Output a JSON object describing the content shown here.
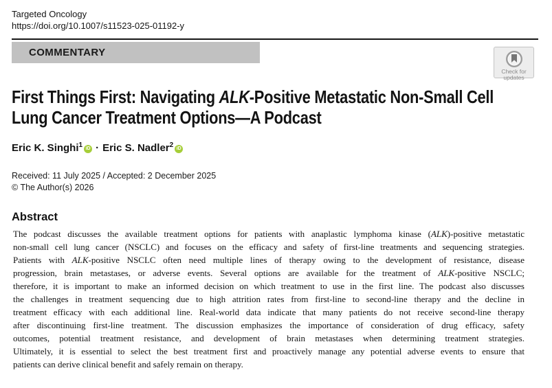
{
  "header": {
    "journal": "Targeted Oncology",
    "doi": "https://doi.org/10.1007/s11523-025-01192-y",
    "article_type": "COMMENTARY"
  },
  "crossmark": {
    "line1": "Check for",
    "line2": "updates",
    "icon": "crossmark-bookmark-icon"
  },
  "title": {
    "lines": [
      {
        "justify": false,
        "segs": [
          {
            "t": "First Things First: Navigating "
          },
          {
            "t": "ALK",
            "i": true
          },
          {
            "t": "-Positive Metastatic Non-Small Cell"
          }
        ]
      },
      {
        "justify": false,
        "segs": [
          {
            "t": "Lung Cancer Treatment Options—A Podcast"
          }
        ]
      }
    ]
  },
  "authors": {
    "list": [
      {
        "name": "Eric K. Singhi",
        "sup": "1"
      },
      {
        "name": "Eric S. Nadler",
        "sup": "2"
      }
    ],
    "separator": "·",
    "orcid_label": "iD",
    "orcid_color": "#A6CE39"
  },
  "meta": {
    "received_accepted": "Received: 11 July 2025 / Accepted: 2 December 2025",
    "copyright": "© The Author(s) 2026"
  },
  "abstract": {
    "heading": "Abstract",
    "lines": [
      {
        "justify": true,
        "segs": [
          {
            "t": "The podcast discusses the available treatment options for patients with anaplastic lymphoma kinase ("
          },
          {
            "t": "ALK",
            "i": true
          },
          {
            "t": ")-positive metastatic"
          }
        ]
      },
      {
        "justify": true,
        "segs": [
          {
            "t": "non-small cell lung cancer (NSCLC) and focuses on the efficacy and safety of first-line treatments and sequencing strategies."
          }
        ]
      },
      {
        "justify": true,
        "segs": [
          {
            "t": "Patients with "
          },
          {
            "t": "ALK",
            "i": true
          },
          {
            "t": "-positive NSCLC often need multiple lines of therapy owing to the development of resistance, disease"
          }
        ]
      },
      {
        "justify": true,
        "segs": [
          {
            "t": "progression, brain metastases, or adverse events. Several options are available for the treatment of "
          },
          {
            "t": "ALK",
            "i": true
          },
          {
            "t": "-positive NSCLC;"
          }
        ]
      },
      {
        "justify": true,
        "segs": [
          {
            "t": "therefore, it is important to make an informed decision on which treatment to use in the first line. The podcast also discusses"
          }
        ]
      },
      {
        "justify": true,
        "segs": [
          {
            "t": "the challenges in treatment sequencing due to high attrition rates from first-line to second-line therapy and the decline in"
          }
        ]
      },
      {
        "justify": true,
        "segs": [
          {
            "t": "treatment efficacy with each additional line. Real-world data indicate that many patients do not receive second-line therapy"
          }
        ]
      },
      {
        "justify": true,
        "segs": [
          {
            "t": "after discontinuing first-line treatment. The discussion emphasizes the importance of consideration of drug efficacy, safety"
          }
        ]
      },
      {
        "justify": true,
        "segs": [
          {
            "t": "outcomes, potential treatment resistance, and development of brain metastases when determining treatment strategies."
          }
        ]
      },
      {
        "justify": true,
        "segs": [
          {
            "t": "Ultimately, it is essential to select the best treatment first and proactively manage any potential adverse events to ensure that"
          }
        ]
      },
      {
        "justify": false,
        "segs": [
          {
            "t": "patients can derive clinical benefit and safely remain on therapy."
          }
        ]
      }
    ]
  },
  "colors": {
    "banner_bg": "#c1c1c1",
    "rule": "#161616",
    "orcid_green": "#A6CE39",
    "badge_bg": "#ededed"
  }
}
